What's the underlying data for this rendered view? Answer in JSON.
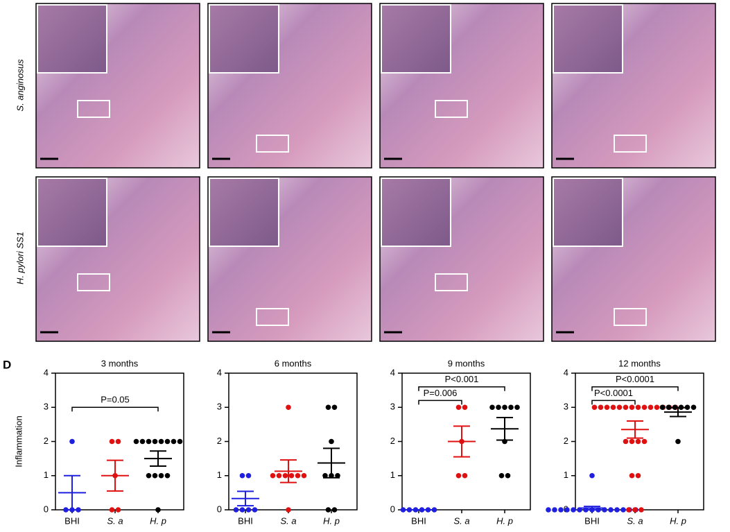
{
  "row_labels": [
    "S. anginosus",
    "H. pylori SS1"
  ],
  "panel_label": "D",
  "chart_data": [
    {
      "type": "strip",
      "title": "3 months",
      "ylabel": "Inflammation",
      "categories": [
        "BHI",
        "S. a",
        "H. p"
      ],
      "colors": [
        "#1f1fe0",
        "#e01010",
        "#000000"
      ],
      "values": [
        [
          2,
          0,
          0,
          0
        ],
        [
          2,
          2,
          1,
          0,
          0
        ],
        [
          2,
          2,
          2,
          2,
          2,
          2,
          2,
          2,
          1,
          1,
          1,
          1,
          0
        ]
      ],
      "means": [
        0.5,
        1,
        1.5
      ],
      "errors": [
        0.5,
        0.45,
        0.22
      ],
      "ylim": [
        0,
        4
      ],
      "yticks": [
        0,
        1,
        2,
        3,
        4
      ],
      "annotations": [
        {
          "text": "P=0.05",
          "between": [
            "BHI",
            "H. p"
          ],
          "y": 3
        }
      ]
    },
    {
      "type": "strip",
      "title": "6 months",
      "categories": [
        "BHI",
        "S. a",
        "H. p"
      ],
      "colors": [
        "#1f1fe0",
        "#e01010",
        "#000000"
      ],
      "values": [
        [
          1,
          1,
          0,
          0,
          0,
          0
        ],
        [
          3,
          1,
          1,
          1,
          1,
          1,
          1,
          0
        ],
        [
          3,
          3,
          2,
          1,
          1,
          1,
          0,
          0
        ]
      ],
      "means": [
        0.33,
        1.13,
        1.37
      ],
      "errors": [
        0.21,
        0.33,
        0.43
      ],
      "ylim": [
        0,
        4
      ],
      "yticks": [
        0,
        1,
        2,
        3,
        4
      ]
    },
    {
      "type": "strip",
      "title": "9 months",
      "categories": [
        "BHI",
        "S. a",
        "H. p"
      ],
      "colors": [
        "#1f1fe0",
        "#e01010",
        "#000000"
      ],
      "values": [
        [
          0,
          0,
          0,
          0,
          0,
          0
        ],
        [
          3,
          3,
          2,
          1,
          1
        ],
        [
          3,
          3,
          3,
          3,
          3,
          2,
          1,
          1
        ]
      ],
      "means": [
        0,
        2,
        2.37
      ],
      "errors": [
        0,
        0.45,
        0.33
      ],
      "ylim": [
        0,
        4
      ],
      "yticks": [
        0,
        1,
        2,
        3,
        4
      ],
      "annotations": [
        {
          "text": "P=0.006",
          "between": [
            "BHI",
            "S. a"
          ],
          "y": 3.2
        },
        {
          "text": "P<0.001",
          "between": [
            "BHI",
            "H. p"
          ],
          "y": 3.6
        }
      ]
    },
    {
      "type": "strip",
      "title": "12 months",
      "categories": [
        "BHI",
        "S. a",
        "H. p"
      ],
      "colors": [
        "#1f1fe0",
        "#e01010",
        "#000000"
      ],
      "values": [
        [
          1,
          0,
          0,
          0,
          0,
          0,
          0,
          0,
          0,
          0,
          0,
          0,
          0,
          0,
          0,
          0
        ],
        [
          3,
          3,
          3,
          3,
          3,
          3,
          3,
          3,
          3,
          3,
          3,
          3,
          3,
          3,
          2,
          2,
          2,
          2,
          1,
          1,
          0,
          0,
          0
        ],
        [
          3,
          3,
          3,
          3,
          3,
          3,
          2
        ]
      ],
      "means": [
        0.05,
        2.35,
        2.86
      ],
      "errors": [
        0.05,
        0.25,
        0.13
      ],
      "ylim": [
        0,
        4
      ],
      "yticks": [
        0,
        1,
        2,
        3,
        4
      ],
      "annotations": [
        {
          "text": "P<0.0001",
          "between": [
            "BHI",
            "S. a"
          ],
          "y": 3.2
        },
        {
          "text": "P<0.0001",
          "between": [
            "BHI",
            "H. p"
          ],
          "y": 3.6
        }
      ]
    }
  ]
}
